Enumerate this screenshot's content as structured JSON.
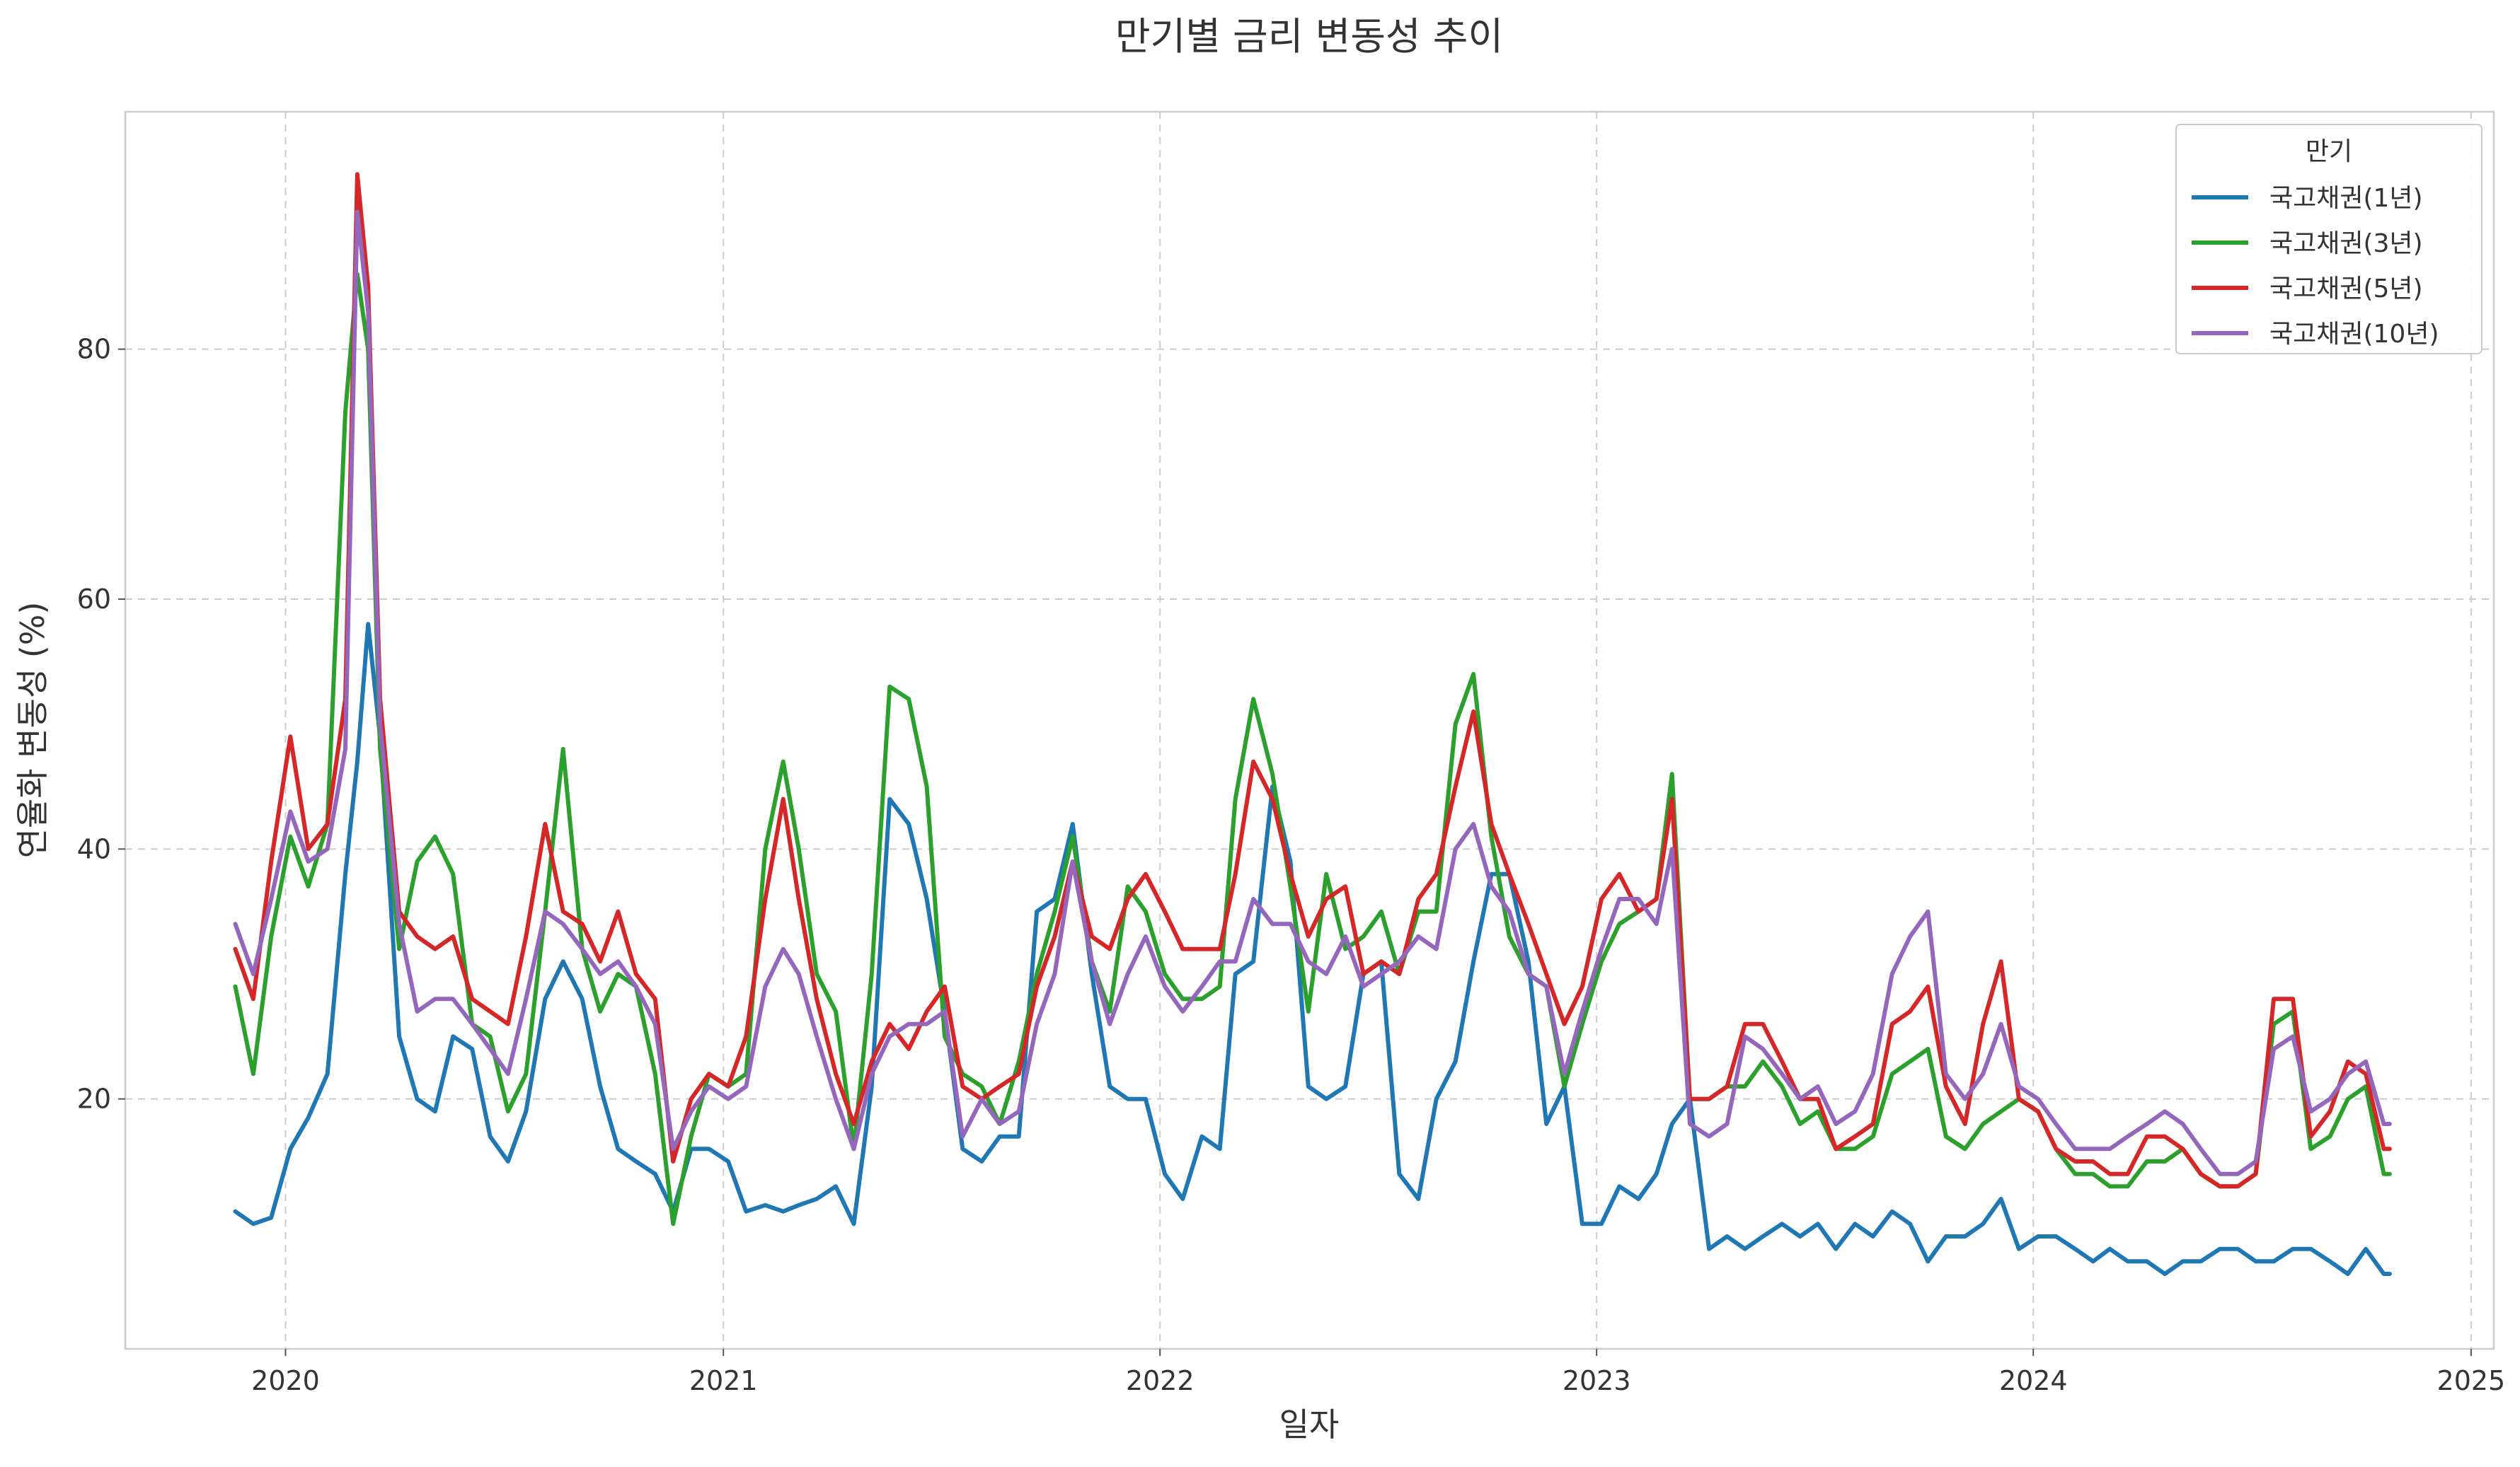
{
  "chart_data": {
    "type": "line",
    "title": "만기별 금리 변동성 추이",
    "xlabel": "일자",
    "ylabel": "연율화 변동성 (%)",
    "xlim": [
      "2019-08-20",
      "2025-01-20"
    ],
    "ylim": [
      0,
      99
    ],
    "x_ticks": [
      "2020",
      "2021",
      "2022",
      "2023",
      "2024",
      "2025"
    ],
    "y_ticks": [
      20,
      40,
      60,
      80
    ],
    "grid": true,
    "legend": {
      "title": "만기",
      "position": "top-right"
    },
    "x": [
      "2019-11-20",
      "2019-12-05",
      "2019-12-20",
      "2020-01-05",
      "2020-01-20",
      "2020-02-05",
      "2020-02-20",
      "2020-03-01",
      "2020-03-10",
      "2020-03-20",
      "2020-04-05",
      "2020-04-20",
      "2020-05-05",
      "2020-05-20",
      "2020-06-05",
      "2020-06-20",
      "2020-07-05",
      "2020-07-20",
      "2020-08-05",
      "2020-08-20",
      "2020-09-05",
      "2020-09-20",
      "2020-10-05",
      "2020-10-20",
      "2020-11-05",
      "2020-11-20",
      "2020-12-05",
      "2020-12-20",
      "2021-01-05",
      "2021-01-20",
      "2021-02-05",
      "2021-02-20",
      "2021-03-05",
      "2021-03-20",
      "2021-04-05",
      "2021-04-20",
      "2021-05-05",
      "2021-05-20",
      "2021-06-05",
      "2021-06-20",
      "2021-07-05",
      "2021-07-20",
      "2021-08-05",
      "2021-08-20",
      "2021-09-05",
      "2021-09-20",
      "2021-10-05",
      "2021-10-20",
      "2021-11-05",
      "2021-11-20",
      "2021-12-05",
      "2021-12-20",
      "2022-01-05",
      "2022-01-20",
      "2022-02-05",
      "2022-02-20",
      "2022-03-05",
      "2022-03-20",
      "2022-04-05",
      "2022-04-20",
      "2022-05-05",
      "2022-05-20",
      "2022-06-05",
      "2022-06-20",
      "2022-07-05",
      "2022-07-20",
      "2022-08-05",
      "2022-08-20",
      "2022-09-05",
      "2022-09-20",
      "2022-10-05",
      "2022-10-20",
      "2022-11-05",
      "2022-11-20",
      "2022-12-05",
      "2022-12-20",
      "2023-01-05",
      "2023-01-20",
      "2023-02-05",
      "2023-02-20",
      "2023-03-05",
      "2023-03-20",
      "2023-04-05",
      "2023-04-20",
      "2023-05-05",
      "2023-05-20",
      "2023-06-05",
      "2023-06-20",
      "2023-07-05",
      "2023-07-20",
      "2023-08-05",
      "2023-08-20",
      "2023-09-05",
      "2023-09-20",
      "2023-10-05",
      "2023-10-20",
      "2023-11-05",
      "2023-11-20",
      "2023-12-05",
      "2023-12-20",
      "2024-01-05",
      "2024-01-20",
      "2024-02-05",
      "2024-02-20",
      "2024-03-05",
      "2024-03-20",
      "2024-04-05",
      "2024-04-20",
      "2024-05-05",
      "2024-05-20",
      "2024-06-05",
      "2024-06-20",
      "2024-07-05",
      "2024-07-20",
      "2024-08-05",
      "2024-08-20",
      "2024-09-05",
      "2024-09-20",
      "2024-10-05",
      "2024-10-20",
      "2024-10-25"
    ],
    "series": [
      {
        "name": "국고채권(1년)",
        "color": "#1f77b4",
        "values": [
          11,
          10,
          10.5,
          16,
          18.5,
          22,
          38,
          47,
          58,
          49,
          25,
          20,
          19,
          25,
          24,
          17,
          15,
          19,
          28,
          31,
          28,
          21,
          16,
          15,
          14,
          11,
          16,
          16,
          15,
          11,
          11.5,
          11,
          11.5,
          12,
          13,
          10,
          21,
          44,
          42,
          36,
          27,
          16,
          15,
          17,
          17,
          35,
          36,
          42,
          30,
          21,
          20,
          20,
          14,
          12,
          17,
          16,
          30,
          31,
          45,
          39,
          21,
          20,
          21,
          30,
          31,
          14,
          12,
          20,
          23,
          31,
          38,
          38,
          31,
          18,
          21,
          10,
          10,
          13,
          12,
          14,
          18,
          20,
          8,
          9,
          8,
          9,
          10,
          9,
          10,
          8,
          10,
          9,
          11,
          10,
          7,
          9,
          9,
          10,
          12,
          8,
          9,
          9,
          8,
          7,
          8,
          7,
          7,
          6,
          7,
          7,
          8,
          8,
          7,
          7,
          8,
          8,
          7,
          6,
          8,
          6,
          6
        ]
      },
      {
        "name": "국고채권(3년)",
        "color": "#2ca02c",
        "values": [
          29,
          22,
          33,
          41,
          37,
          42,
          75,
          86,
          80,
          48,
          32,
          39,
          41,
          38,
          26,
          25,
          19,
          22,
          35,
          48,
          32,
          27,
          30,
          29,
          22,
          10,
          17,
          22,
          21,
          22,
          40,
          47,
          40,
          30,
          27,
          16,
          30,
          53,
          52,
          45,
          25,
          22,
          21,
          18,
          23,
          30,
          35,
          41,
          31,
          27,
          37,
          35,
          30,
          28,
          28,
          29,
          44,
          52,
          46,
          37,
          27,
          38,
          32,
          33,
          35,
          30,
          35,
          35,
          50,
          54,
          41,
          33,
          30,
          29,
          21,
          26,
          31,
          34,
          35,
          36,
          46,
          20,
          20,
          21,
          21,
          23,
          21,
          18,
          19,
          16,
          16,
          17,
          22,
          23,
          24,
          17,
          16,
          18,
          19,
          20,
          19,
          16,
          14,
          14,
          13,
          13,
          15,
          15,
          16,
          14,
          13,
          13,
          14,
          26,
          27,
          16,
          17,
          20,
          21,
          14,
          14
        ]
      },
      {
        "name": "국고채권(5년)",
        "color": "#d62728",
        "values": [
          32,
          28,
          39,
          49,
          40,
          42,
          52,
          94,
          85,
          52,
          35,
          33,
          32,
          33,
          28,
          27,
          26,
          33,
          42,
          35,
          34,
          31,
          35,
          30,
          28,
          15,
          20,
          22,
          21,
          25,
          36,
          44,
          36,
          28,
          22,
          18,
          23,
          26,
          24,
          27,
          29,
          21,
          20,
          21,
          22,
          29,
          33,
          39,
          33,
          32,
          36,
          38,
          35,
          32,
          32,
          32,
          38,
          47,
          44,
          38,
          33,
          36,
          37,
          30,
          31,
          30,
          36,
          38,
          45,
          51,
          42,
          38,
          34,
          30,
          26,
          29,
          36,
          38,
          35,
          36,
          44,
          20,
          20,
          21,
          26,
          26,
          23,
          20,
          20,
          16,
          17,
          18,
          26,
          27,
          29,
          21,
          18,
          26,
          31,
          20,
          19,
          16,
          15,
          15,
          14,
          14,
          17,
          17,
          16,
          14,
          13,
          13,
          14,
          28,
          28,
          17,
          19,
          23,
          22,
          16,
          16
        ]
      },
      {
        "name": "국고채권(10년)",
        "color": "#9467bd",
        "values": [
          34,
          30,
          36,
          43,
          39,
          40,
          48,
          91,
          83,
          50,
          34,
          27,
          28,
          28,
          26,
          24,
          22,
          28,
          35,
          34,
          32,
          30,
          31,
          29,
          26,
          16,
          19,
          21,
          20,
          21,
          29,
          32,
          30,
          25,
          20,
          16,
          22,
          25,
          26,
          26,
          27,
          17,
          20,
          18,
          19,
          26,
          30,
          39,
          31,
          26,
          30,
          33,
          29,
          27,
          29,
          31,
          31,
          36,
          34,
          34,
          31,
          30,
          33,
          29,
          30,
          31,
          33,
          32,
          40,
          42,
          37,
          35,
          30,
          29,
          22,
          27,
          32,
          36,
          36,
          34,
          40,
          18,
          17,
          18,
          25,
          24,
          22,
          20,
          21,
          18,
          19,
          22,
          30,
          33,
          35,
          22,
          20,
          22,
          26,
          21,
          20,
          18,
          16,
          16,
          16,
          17,
          18,
          19,
          18,
          16,
          14,
          14,
          15,
          24,
          25,
          19,
          20,
          22,
          23,
          18,
          18
        ]
      }
    ]
  }
}
